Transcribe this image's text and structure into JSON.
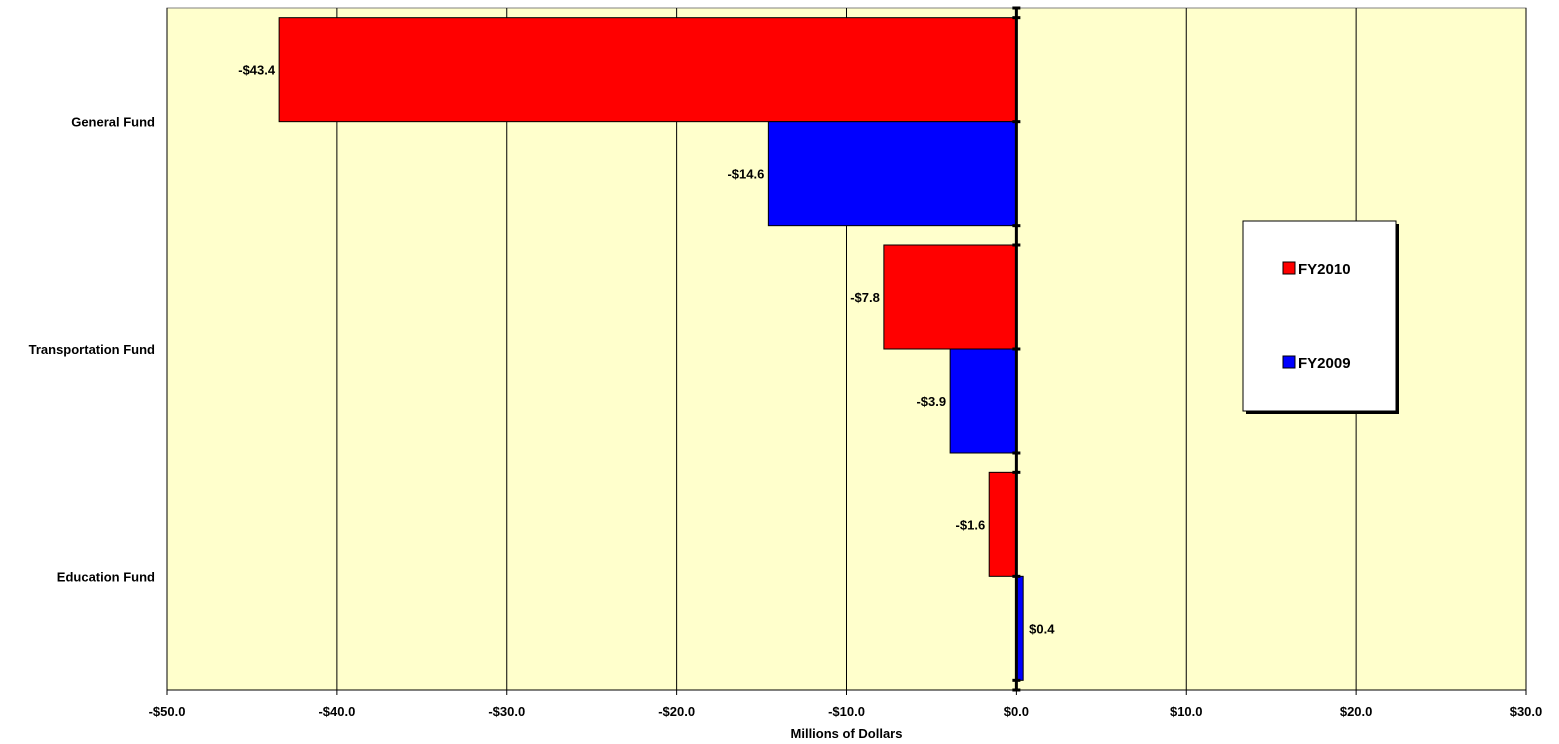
{
  "chart_data": {
    "type": "bar",
    "orientation": "horizontal",
    "categories": [
      "General Fund",
      "Transportation Fund",
      "Education Fund"
    ],
    "series": [
      {
        "name": "FY2010",
        "color": "#ff0000",
        "values": [
          -43.4,
          -7.8,
          -1.6
        ],
        "labels": [
          "-$43.4",
          "-$7.8",
          "-$1.6"
        ]
      },
      {
        "name": "FY2009",
        "color": "#0000ff",
        "values": [
          -14.6,
          -3.9,
          0.4
        ],
        "labels": [
          "-$14.6",
          "-$3.9",
          "$0.4"
        ]
      }
    ],
    "xlim": [
      -50,
      30
    ],
    "x_ticks": [
      -50,
      -40,
      -30,
      -20,
      -10,
      0,
      10,
      20,
      30
    ],
    "x_tick_labels": [
      "-$50.0",
      "-$40.0",
      "-$30.0",
      "-$20.0",
      "-$10.0",
      "$0.0",
      "$10.0",
      "$20.0",
      "$30.0"
    ],
    "xlabel": "Millions of Dollars",
    "ylabel": "",
    "title": "",
    "grid": "vertical",
    "legend_position": "right",
    "plot_background": "#ffffcc"
  }
}
